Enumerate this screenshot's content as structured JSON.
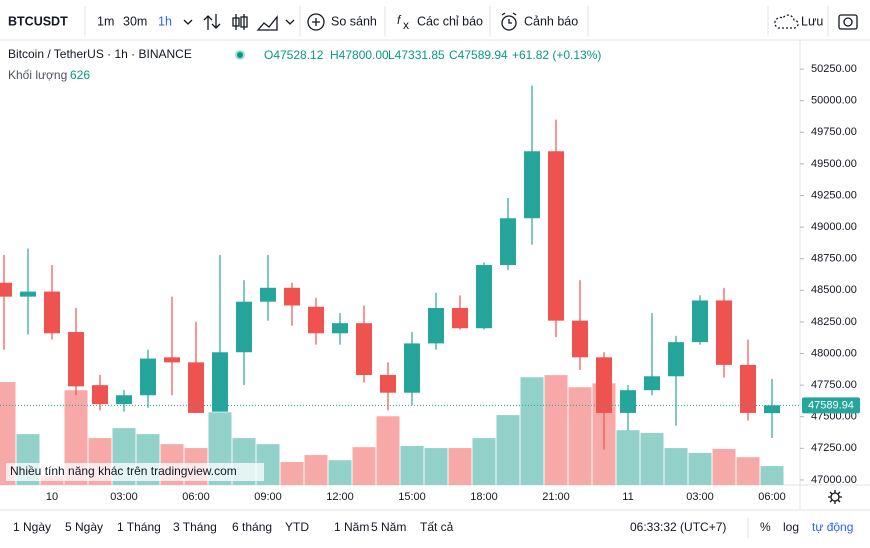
{
  "toolbar": {
    "symbol": "BTCUSDT",
    "intervals": [
      "1m",
      "30m",
      "1h"
    ],
    "compare": "So sánh",
    "indicators": "Các chỉ báo",
    "alerts": "Cảnh báo",
    "save": "Lưu"
  },
  "legend": {
    "title": "Bitcoin / TetherUS · 1h · BINANCE",
    "ohlc": [
      "O47528.12",
      "H47800.00",
      "L47331.85",
      "C47589.94"
    ],
    "change": "+61.82 (+0.13%)",
    "volume_label": "Khối lượng"
  },
  "watermark": "Nhiều tính năng khác trên tradingview.com",
  "chart_data": {
    "type": "candlestick",
    "categories": [
      null,
      null,
      "10",
      null,
      null,
      "03:00",
      null,
      null,
      "06:00",
      null,
      null,
      "09:00",
      null,
      null,
      "12:00",
      null,
      null,
      "15:00",
      null,
      null,
      "18:00",
      null,
      null,
      "21:00",
      null,
      null,
      "11",
      null,
      null,
      "03:00",
      null,
      null,
      "06:00"
    ],
    "open": [
      48560,
      48450,
      48490,
      48170,
      47750,
      47600,
      47670,
      47970,
      47930,
      47540,
      48010,
      48410,
      48520,
      48370,
      48160,
      48240,
      47830,
      47690,
      48080,
      48360,
      48200,
      48700,
      49070,
      49600,
      48260,
      47970,
      47530,
      47710,
      47820,
      48090,
      48420,
      47910,
      47528.12
    ],
    "high": [
      48780,
      48830,
      48700,
      48360,
      47830,
      47710,
      48030,
      48450,
      48250,
      48780,
      48580,
      48780,
      48560,
      48440,
      48320,
      48380,
      47930,
      48170,
      48480,
      48460,
      48720,
      49230,
      50120,
      49850,
      48580,
      48010,
      47750,
      48320,
      48140,
      48460,
      48520,
      48110,
      47800
    ],
    "low": [
      48030,
      48150,
      48110,
      47670,
      47550,
      47540,
      47570,
      47670,
      47530,
      47540,
      47750,
      48260,
      48220,
      48070,
      48070,
      47770,
      47550,
      47590,
      48030,
      48190,
      48190,
      48660,
      48860,
      48130,
      47870,
      47240,
      47390,
      47670,
      47430,
      48070,
      47810,
      47470,
      47331.85
    ],
    "close": [
      48450,
      48490,
      48160,
      47740,
      47600,
      47670,
      47960,
      47930,
      47530,
      48010,
      48410,
      48520,
      48380,
      48160,
      48240,
      47830,
      47690,
      48080,
      48360,
      48200,
      48700,
      49070,
      49600,
      48260,
      47970,
      47530,
      47710,
      47820,
      48090,
      48420,
      47910,
      47530,
      47589.94
    ],
    "volume": [
      3400,
      1680,
      300,
      3130,
      1550,
      1880,
      1680,
      1350,
      1220,
      2400,
      1550,
      1350,
      760,
      990,
      820,
      1250,
      2270,
      1290,
      1220,
      1220,
      1550,
      2310,
      3560,
      3630,
      3230,
      3360,
      1810,
      1720,
      1220,
      1060,
      1190,
      920,
      626
    ],
    "up_color": "#26a69a",
    "down_color": "#ef5350",
    "volume_up_color": "#93d2cb",
    "volume_down_color": "#f7a9a7",
    "ylim": [
      46960,
      50480
    ],
    "yticks": [
      {
        "value": 47000,
        "label": "47000.00"
      },
      {
        "value": 47250,
        "label": "47250.00"
      },
      {
        "value": 47500,
        "label": "47500.00"
      },
      {
        "value": 47750,
        "label": "47750.00"
      },
      {
        "value": 48000,
        "label": "48000.00"
      },
      {
        "value": 48250,
        "label": "48250.00"
      },
      {
        "value": 48500,
        "label": "48500.00"
      },
      {
        "value": 48750,
        "label": "48750.00"
      },
      {
        "value": 49000,
        "label": "49000.00"
      },
      {
        "value": 49250,
        "label": "49250.00"
      },
      {
        "value": 49500,
        "label": "49500.00"
      },
      {
        "value": 49750,
        "label": "49750.00"
      },
      {
        "value": 50000,
        "label": "50000.00"
      },
      {
        "value": 50250,
        "label": "50250.00"
      }
    ],
    "y2lim": [
      0,
      14700
    ],
    "grid": false
  },
  "bottom_bar": {
    "ranges": [
      "1 Ngày",
      "5 Ngày",
      "1 Tháng",
      "3 Tháng",
      "6 tháng",
      "YTD",
      "1 Năm",
      "5 Năm",
      "Tất cả"
    ],
    "clock": "06:33:32 (UTC+7)",
    "percent": "%",
    "log": "log",
    "auto": "tự động"
  }
}
